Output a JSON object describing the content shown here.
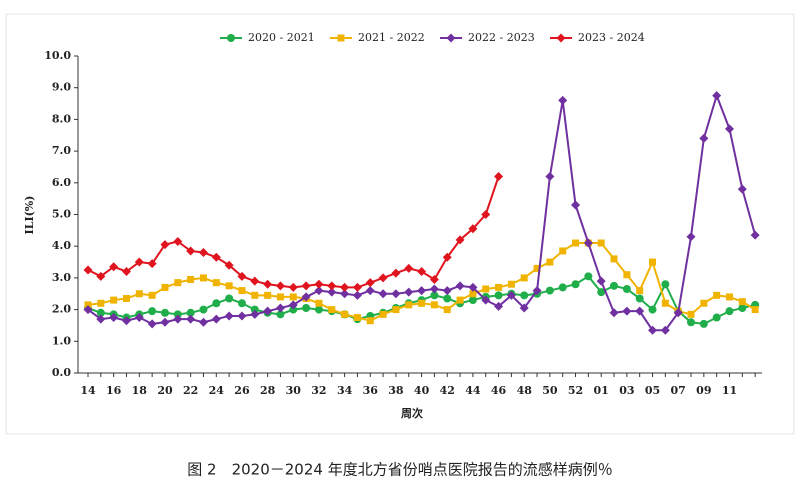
{
  "chart_data": {
    "type": "line",
    "caption": "图 2　2020－2024 年度北方省份哨点医院报告的流感样病例％",
    "x_label": "周次",
    "y_label": "ILI(%)",
    "categories": [
      "14",
      null,
      "16",
      null,
      "18",
      null,
      "20",
      null,
      "22",
      null,
      "24",
      null,
      "26",
      null,
      "28",
      null,
      "30",
      null,
      "32",
      null,
      "34",
      null,
      "36",
      null,
      "38",
      null,
      "40",
      null,
      "42",
      null,
      "44",
      null,
      "46",
      null,
      "48",
      null,
      "50",
      null,
      "52",
      null,
      "01",
      null,
      "03",
      null,
      "05",
      null,
      "07",
      null,
      "09",
      null,
      "11",
      null,
      null
    ],
    "ylim": [
      0,
      10
    ],
    "yticks": [
      {
        "value": 0,
        "label": "0.0"
      },
      {
        "value": 1,
        "label": "1.0"
      },
      {
        "value": 2,
        "label": "2.0"
      },
      {
        "value": 3,
        "label": "3.0"
      },
      {
        "value": 4,
        "label": "4.0"
      },
      {
        "value": 5,
        "label": "5.0"
      },
      {
        "value": 6,
        "label": "6.0"
      },
      {
        "value": 7,
        "label": "7.0"
      },
      {
        "value": 8,
        "label": "8.0"
      },
      {
        "value": 9,
        "label": "9.0"
      },
      {
        "value": 10,
        "label": "10.0"
      }
    ],
    "legend": "top",
    "series": [
      {
        "name": "2020 - 2021",
        "color": "#1fae4a",
        "marker": "circle",
        "values": [
          2.05,
          1.9,
          1.85,
          1.75,
          1.85,
          1.95,
          1.9,
          1.85,
          1.9,
          2.0,
          2.2,
          2.35,
          2.2,
          2.0,
          1.9,
          1.85,
          2.0,
          2.05,
          2.0,
          1.95,
          1.85,
          1.7,
          1.8,
          1.9,
          2.05,
          2.2,
          2.3,
          2.45,
          2.35,
          2.2,
          2.3,
          2.4,
          2.45,
          2.5,
          2.45,
          2.5,
          2.6,
          2.7,
          2.8,
          3.05,
          2.55,
          2.75,
          2.65,
          2.35,
          2.0,
          2.8,
          1.95,
          1.6,
          1.55,
          1.75,
          1.95,
          2.05,
          2.15
        ]
      },
      {
        "name": "2021 - 2022",
        "color": "#f0b400",
        "marker": "square",
        "values": [
          2.15,
          2.2,
          2.3,
          2.35,
          2.5,
          2.45,
          2.7,
          2.85,
          2.95,
          3.0,
          2.85,
          2.75,
          2.6,
          2.45,
          2.45,
          2.4,
          2.4,
          2.35,
          2.2,
          2.0,
          1.85,
          1.75,
          1.65,
          1.85,
          2.0,
          2.15,
          2.2,
          2.15,
          2.0,
          2.3,
          2.5,
          2.65,
          2.7,
          2.8,
          3.0,
          3.3,
          3.5,
          3.85,
          4.1,
          4.1,
          4.1,
          3.6,
          3.1,
          2.6,
          3.5,
          2.2,
          1.95,
          1.85,
          2.2,
          2.45,
          2.4,
          2.25,
          2.0
        ]
      },
      {
        "name": "2022 - 2023",
        "color": "#7030a0",
        "marker": "diamond",
        "values": [
          2.0,
          1.7,
          1.75,
          1.65,
          1.75,
          1.55,
          1.6,
          1.7,
          1.7,
          1.6,
          1.7,
          1.8,
          1.8,
          1.85,
          1.95,
          2.05,
          2.15,
          2.4,
          2.6,
          2.55,
          2.5,
          2.45,
          2.6,
          2.5,
          2.5,
          2.55,
          2.6,
          2.65,
          2.6,
          2.75,
          2.7,
          2.3,
          2.1,
          2.45,
          2.05,
          2.6,
          6.2,
          8.6,
          5.3,
          4.1,
          2.9,
          1.9,
          1.95,
          1.95,
          1.35,
          1.35,
          1.9,
          4.3,
          7.4,
          8.75,
          7.7,
          5.8,
          4.35
        ]
      },
      {
        "name": "2023 - 2024",
        "color": "#e0141e",
        "marker": "diamond",
        "values": [
          3.25,
          3.05,
          3.35,
          3.2,
          3.5,
          3.45,
          4.05,
          4.15,
          3.85,
          3.8,
          3.65,
          3.4,
          3.05,
          2.9,
          2.8,
          2.75,
          2.7,
          2.75,
          2.8,
          2.75,
          2.7,
          2.7,
          2.85,
          3.0,
          3.15,
          3.3,
          3.2,
          2.95,
          3.65,
          4.2,
          4.55,
          5.0,
          6.2,
          null,
          null,
          null,
          null,
          null,
          null,
          null,
          null,
          null,
          null,
          null,
          null,
          null,
          null,
          null,
          null,
          null,
          null,
          null,
          null
        ]
      }
    ]
  }
}
